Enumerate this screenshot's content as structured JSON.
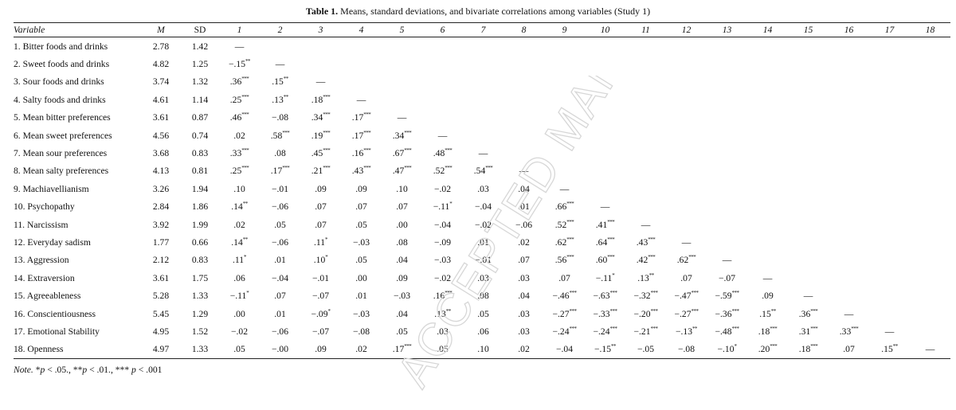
{
  "title_label": "Table 1.",
  "title_text": "Means, standard deviations, and bivariate correlations among variables (Study 1)",
  "headers": {
    "variable": "Variable",
    "mean": "M",
    "sd": "SD",
    "numbers": [
      "1",
      "2",
      "3",
      "4",
      "5",
      "6",
      "7",
      "8",
      "9",
      "10",
      "11",
      "12",
      "13",
      "14",
      "15",
      "16",
      "17",
      "18"
    ]
  },
  "dash": "—",
  "rows": [
    {
      "name": "1. Bitter foods and drinks",
      "m": "2.78",
      "sd": "1.42",
      "r": []
    },
    {
      "name": "2. Sweet foods and drinks",
      "m": "4.82",
      "sd": "1.25",
      "r": [
        [
          "−.15",
          "**"
        ]
      ]
    },
    {
      "name": "3. Sour foods and drinks",
      "m": "3.74",
      "sd": "1.32",
      "r": [
        [
          ".36",
          "***"
        ],
        [
          ".15",
          "**"
        ]
      ]
    },
    {
      "name": "4. Salty foods and drinks",
      "m": "4.61",
      "sd": "1.14",
      "r": [
        [
          ".25",
          "***"
        ],
        [
          ".13",
          "**"
        ],
        [
          ".18",
          "***"
        ]
      ]
    },
    {
      "name": "5. Mean bitter preferences",
      "m": "3.61",
      "sd": "0.87",
      "r": [
        [
          ".46",
          "***"
        ],
        [
          "−.08",
          ""
        ],
        [
          ".34",
          "***"
        ],
        [
          ".17",
          "***"
        ]
      ]
    },
    {
      "name": "6. Mean sweet preferences",
      "m": "4.56",
      "sd": "0.74",
      "r": [
        [
          ".02",
          ""
        ],
        [
          ".58",
          "***"
        ],
        [
          ".19",
          "***"
        ],
        [
          ".17",
          "***"
        ],
        [
          ".34",
          "***"
        ]
      ]
    },
    {
      "name": "7. Mean sour preferences",
      "m": "3.68",
      "sd": "0.83",
      "r": [
        [
          ".33",
          "***"
        ],
        [
          ".08",
          ""
        ],
        [
          ".45",
          "***"
        ],
        [
          ".16",
          "***"
        ],
        [
          ".67",
          "***"
        ],
        [
          ".48",
          "***"
        ]
      ]
    },
    {
      "name": "8. Mean salty preferences",
      "m": "4.13",
      "sd": "0.81",
      "r": [
        [
          ".25",
          "***"
        ],
        [
          ".17",
          "***"
        ],
        [
          ".21",
          "***"
        ],
        [
          ".43",
          "***"
        ],
        [
          ".47",
          "***"
        ],
        [
          ".52",
          "***"
        ],
        [
          ".54",
          "***"
        ]
      ]
    },
    {
      "name": "9. Machiavellianism",
      "m": "3.26",
      "sd": "1.94",
      "r": [
        [
          ".10",
          ""
        ],
        [
          "−.01",
          ""
        ],
        [
          ".09",
          ""
        ],
        [
          ".09",
          ""
        ],
        [
          ".10",
          ""
        ],
        [
          "−.02",
          ""
        ],
        [
          ".03",
          ""
        ],
        [
          ".04",
          ""
        ]
      ]
    },
    {
      "name": "10. Psychopathy",
      "m": "2.84",
      "sd": "1.86",
      "r": [
        [
          ".14",
          "**"
        ],
        [
          "−.06",
          ""
        ],
        [
          ".07",
          ""
        ],
        [
          ".07",
          ""
        ],
        [
          ".07",
          ""
        ],
        [
          "−.11",
          "*"
        ],
        [
          "−.04",
          ""
        ],
        [
          ".01",
          ""
        ],
        [
          ".66",
          "***"
        ]
      ]
    },
    {
      "name": "11. Narcissism",
      "m": "3.92",
      "sd": "1.99",
      "r": [
        [
          ".02",
          ""
        ],
        [
          ".05",
          ""
        ],
        [
          ".07",
          ""
        ],
        [
          ".05",
          ""
        ],
        [
          ".00",
          ""
        ],
        [
          "−.04",
          ""
        ],
        [
          "−.02",
          ""
        ],
        [
          "−.06",
          ""
        ],
        [
          ".52",
          "***"
        ],
        [
          ".41",
          "***"
        ]
      ]
    },
    {
      "name": "12. Everyday sadism",
      "m": "1.77",
      "sd": "0.66",
      "r": [
        [
          ".14",
          "**"
        ],
        [
          "−.06",
          ""
        ],
        [
          ".11",
          "*"
        ],
        [
          "−.03",
          ""
        ],
        [
          ".08",
          ""
        ],
        [
          "−.09",
          ""
        ],
        [
          ".01",
          ""
        ],
        [
          ".02",
          ""
        ],
        [
          ".62",
          "***"
        ],
        [
          ".64",
          "***"
        ],
        [
          ".43",
          "***"
        ]
      ]
    },
    {
      "name": "13. Aggression",
      "m": "2.12",
      "sd": "0.83",
      "r": [
        [
          ".11",
          "*"
        ],
        [
          ".01",
          ""
        ],
        [
          ".10",
          "*"
        ],
        [
          ".05",
          ""
        ],
        [
          ".04",
          ""
        ],
        [
          "−.03",
          ""
        ],
        [
          "−.01",
          ""
        ],
        [
          ".07",
          ""
        ],
        [
          ".56",
          "***"
        ],
        [
          ".60",
          "***"
        ],
        [
          ".42",
          "***"
        ],
        [
          ".62",
          "***"
        ]
      ]
    },
    {
      "name": "14. Extraversion",
      "m": "3.61",
      "sd": "1.75",
      "r": [
        [
          ".06",
          ""
        ],
        [
          "−.04",
          ""
        ],
        [
          "−.01",
          ""
        ],
        [
          ".00",
          ""
        ],
        [
          ".09",
          ""
        ],
        [
          "−.02",
          ""
        ],
        [
          ".03",
          ""
        ],
        [
          ".03",
          ""
        ],
        [
          ".07",
          ""
        ],
        [
          "−.11",
          "*"
        ],
        [
          ".13",
          "**"
        ],
        [
          ".07",
          ""
        ],
        [
          "−.07",
          ""
        ]
      ]
    },
    {
      "name": "15. Agreeableness",
      "m": "5.28",
      "sd": "1.33",
      "r": [
        [
          "−.11",
          "*"
        ],
        [
          ".07",
          ""
        ],
        [
          "−.07",
          ""
        ],
        [
          ".01",
          ""
        ],
        [
          "−.03",
          ""
        ],
        [
          ".16",
          "***"
        ],
        [
          ".08",
          ""
        ],
        [
          ".04",
          ""
        ],
        [
          "−.46",
          "***"
        ],
        [
          "−.63",
          "***"
        ],
        [
          "−.32",
          "***"
        ],
        [
          "−.47",
          "***"
        ],
        [
          "−.59",
          "***"
        ],
        [
          ".09",
          ""
        ]
      ]
    },
    {
      "name": "16. Conscientiousness",
      "m": "5.45",
      "sd": "1.29",
      "r": [
        [
          ".00",
          ""
        ],
        [
          ".01",
          ""
        ],
        [
          "−.09",
          "*"
        ],
        [
          "−.03",
          ""
        ],
        [
          ".04",
          ""
        ],
        [
          ".13",
          "**"
        ],
        [
          ".05",
          ""
        ],
        [
          ".03",
          ""
        ],
        [
          "−.27",
          "***"
        ],
        [
          "−.33",
          "***"
        ],
        [
          "−.20",
          "***"
        ],
        [
          "−.27",
          "***"
        ],
        [
          "−.36",
          "***"
        ],
        [
          ".15",
          "**"
        ],
        [
          ".36",
          "***"
        ]
      ]
    },
    {
      "name": "17. Emotional Stability",
      "m": "4.95",
      "sd": "1.52",
      "r": [
        [
          "−.02",
          ""
        ],
        [
          "−.06",
          ""
        ],
        [
          "−.07",
          ""
        ],
        [
          "−.08",
          ""
        ],
        [
          ".05",
          ""
        ],
        [
          ".03",
          ""
        ],
        [
          ".06",
          ""
        ],
        [
          ".03",
          ""
        ],
        [
          "−.24",
          "***"
        ],
        [
          "−.24",
          "***"
        ],
        [
          "−.21",
          "***"
        ],
        [
          "−.13",
          "**"
        ],
        [
          "−.48",
          "***"
        ],
        [
          ".18",
          "***"
        ],
        [
          ".31",
          "***"
        ],
        [
          ".33",
          "***"
        ]
      ]
    },
    {
      "name": "18. Openness",
      "m": "4.97",
      "sd": "1.33",
      "r": [
        [
          ".05",
          ""
        ],
        [
          "−.00",
          ""
        ],
        [
          ".09",
          ""
        ],
        [
          ".02",
          ""
        ],
        [
          ".17",
          "***"
        ],
        [
          ".05",
          ""
        ],
        [
          ".10",
          ""
        ],
        [
          ".02",
          ""
        ],
        [
          "−.04",
          ""
        ],
        [
          "−.15",
          "**"
        ],
        [
          "−.05",
          ""
        ],
        [
          "−.08",
          ""
        ],
        [
          "−.10",
          "*"
        ],
        [
          ".20",
          "***"
        ],
        [
          ".18",
          "***"
        ],
        [
          ".07",
          ""
        ],
        [
          ".15",
          "**"
        ]
      ]
    }
  ],
  "note": {
    "lead": "Note.",
    "p1_star": "*",
    "p1_text": " < .05., ",
    "p2_star": "**",
    "p2_text": " < .01., ",
    "p3_star": "***",
    "p3_text": " < .001",
    "p_letter": "p"
  },
  "watermark": "ACCEPTED MANUSCRIPT"
}
